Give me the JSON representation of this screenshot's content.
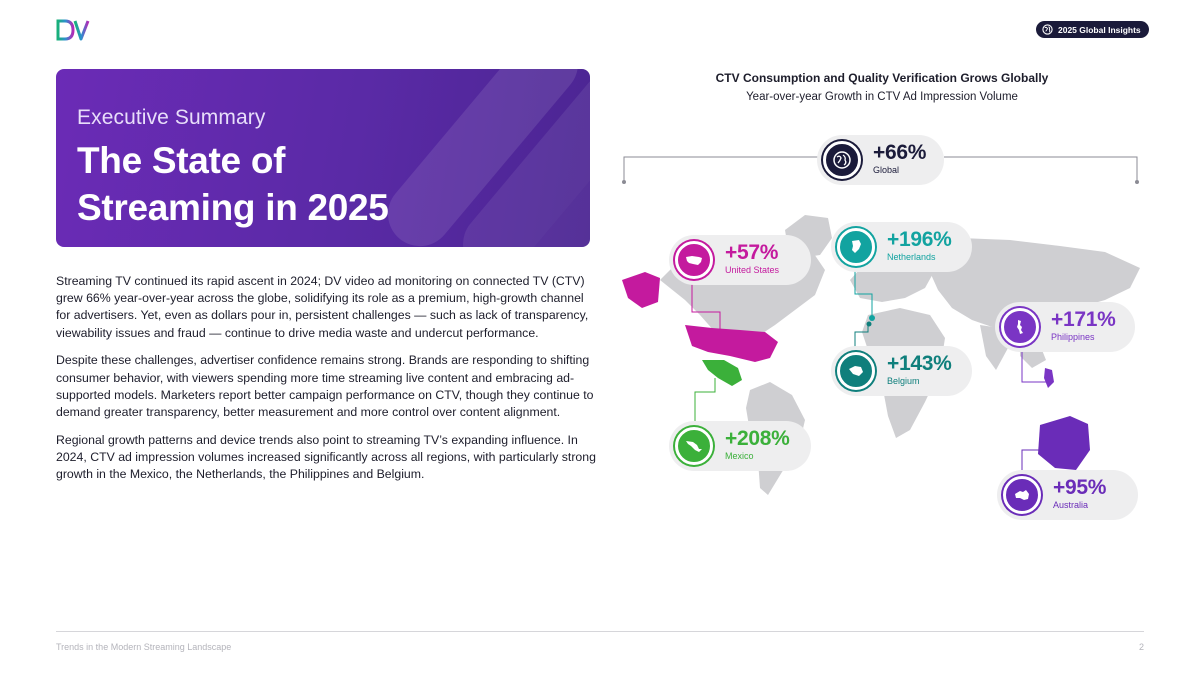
{
  "header": {
    "logo_text": "DV",
    "badge_label": "2025 Global Insights",
    "badge_icon": "globe-icon"
  },
  "hero": {
    "eyebrow": "Executive Summary",
    "title": "The State of Streaming in 2025"
  },
  "body": {
    "paragraphs": [
      "Streaming TV continued its rapid ascent in 2024; DV video ad monitoring on connected TV (CTV) grew 66% year-over-year across the globe, solidifying its role as a premium, high-growth channel for advertisers. Yet, even as dollars pour in, persistent challenges — such as lack of transparency, viewability issues and fraud — continue to drive media waste and undercut performance.",
      "Despite these challenges, advertiser confidence remains strong. Brands are responding to shifting consumer behavior, with viewers spending more time streaming live content and embracing ad-supported models. Marketers report better campaign performance on CTV, though they continue to demand greater transparency, better measurement and more control over content alignment.",
      "Regional growth patterns and device trends also point to streaming TV’s expanding influence. In 2024, CTV ad impression volumes increased significantly across all regions, with particularly strong growth in the Mexico, the Netherlands, the Philippines and Belgium."
    ]
  },
  "figure": {
    "title": "CTV Consumption and Quality Verification Grows Globally",
    "subtitle": "Year-over-year Growth in CTV Ad Impression Volume",
    "stats": {
      "global": {
        "value": "+66%",
        "label": "Global",
        "icon": "globe-icon",
        "color": "#1b1b3a"
      },
      "us": {
        "value": "+57%",
        "label": "United States",
        "icon": "united-states-map-icon",
        "color": "#c41a9e"
      },
      "netherlands": {
        "value": "+196%",
        "label": "Netherlands",
        "icon": "netherlands-map-icon",
        "color": "#12a3a0"
      },
      "philippines": {
        "value": "+171%",
        "label": "Philippines",
        "icon": "philippines-map-icon",
        "color": "#7a35c4"
      },
      "belgium": {
        "value": "+143%",
        "label": "Belgium",
        "icon": "belgium-map-icon",
        "color": "#0f7f7c"
      },
      "mexico": {
        "value": "+208%",
        "label": "Mexico",
        "icon": "mexico-map-icon",
        "color": "#3bb03a"
      },
      "australia": {
        "value": "+95%",
        "label": "Australia",
        "icon": "australia-map-icon",
        "color": "#6a2cb8"
      }
    }
  },
  "footer": {
    "left": "Trends in the Modern Streaming Landscape",
    "page": "2"
  }
}
